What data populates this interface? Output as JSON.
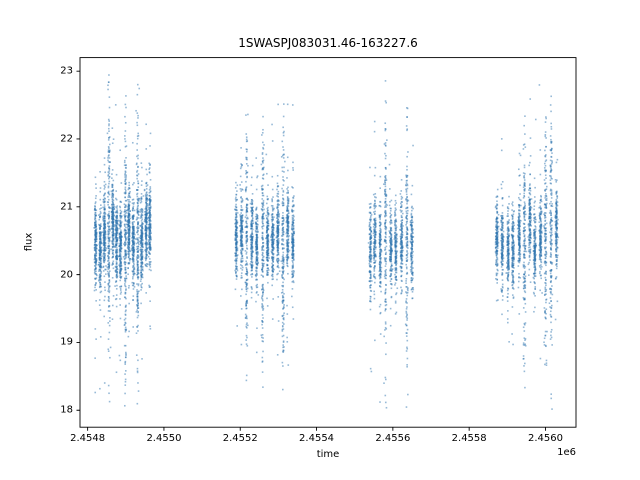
{
  "chart_data": {
    "type": "scatter",
    "title": "1SWASPJ083031.46-163227.6",
    "xlabel": "time",
    "ylabel": "flux",
    "x_axis_multiplier_label": "1e6",
    "grid": false,
    "legend": null,
    "xlim": [
      2.45478,
      2.45608
    ],
    "ylim": [
      17.75,
      23.2
    ],
    "xticks": {
      "values": [
        2.4548,
        2.455,
        2.4552,
        2.4554,
        2.4556,
        2.4558,
        2.456
      ],
      "labels": [
        "2.4548",
        "2.4550",
        "2.4552",
        "2.4554",
        "2.4556",
        "2.4558",
        "2.4560"
      ]
    },
    "yticks": {
      "values": [
        18,
        19,
        20,
        21,
        22,
        23
      ],
      "labels": [
        "18",
        "19",
        "20",
        "21",
        "22",
        "23"
      ]
    },
    "point_color": "#2f76b0",
    "point_alpha": 0.5,
    "marker_px": 1.6,
    "clusters": [
      {
        "x_start": 2.454822,
        "x_end": 2.454963,
        "n_nights": 14,
        "points_per_night": 200,
        "flux_mean": 20.55,
        "night_jitter": 0.12,
        "core_sigma": 0.3,
        "tail_prob": 0.06,
        "tail_sigma": 0.9,
        "wide_nights": [
          3,
          7,
          10
        ],
        "wide_sigma": 0.8,
        "wide_tail_prob": 0.2,
        "wide_tail_sigma": 1.5,
        "flux_min": 17.98,
        "flux_max": 22.95,
        "stripe_sigma": 1.5e-06,
        "seed": 101
      },
      {
        "x_start": 2.455191,
        "x_end": 2.455338,
        "n_nights": 12,
        "points_per_night": 175,
        "flux_mean": 20.5,
        "night_jitter": 0.12,
        "core_sigma": 0.3,
        "tail_prob": 0.06,
        "tail_sigma": 0.9,
        "wide_nights": [
          2,
          5,
          9
        ],
        "wide_sigma": 0.75,
        "wide_tail_prob": 0.18,
        "wide_tail_sigma": 1.4,
        "flux_min": 17.95,
        "flux_max": 22.75,
        "stripe_sigma": 1.5e-06,
        "seed": 202
      },
      {
        "x_start": 2.45554,
        "x_end": 2.45565,
        "n_nights": 9,
        "points_per_night": 150,
        "flux_mean": 20.4,
        "night_jitter": 0.12,
        "core_sigma": 0.3,
        "tail_prob": 0.06,
        "tail_sigma": 0.9,
        "wide_nights": [
          3,
          7
        ],
        "wide_sigma": 0.8,
        "wide_tail_prob": 0.2,
        "wide_tail_sigma": 1.5,
        "flux_min": 18.0,
        "flux_max": 22.9,
        "stripe_sigma": 1.5e-06,
        "seed": 303
      },
      {
        "x_start": 2.455873,
        "x_end": 2.45603,
        "n_nights": 12,
        "points_per_night": 165,
        "flux_mean": 20.5,
        "night_jitter": 0.12,
        "core_sigma": 0.3,
        "tail_prob": 0.06,
        "tail_sigma": 0.9,
        "wide_nights": [
          5,
          9,
          10
        ],
        "wide_sigma": 0.8,
        "wide_tail_prob": 0.2,
        "wide_tail_sigma": 1.5,
        "flux_min": 17.98,
        "flux_max": 22.85,
        "stripe_sigma": 1.5e-06,
        "seed": 404
      }
    ]
  }
}
